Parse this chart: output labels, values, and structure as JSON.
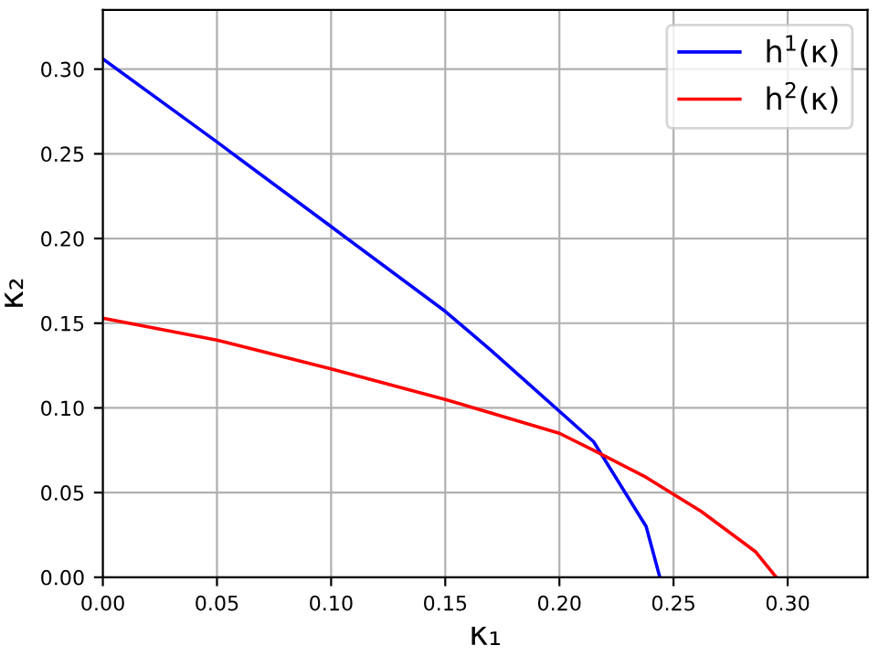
{
  "chart_data": {
    "type": "line",
    "xlabel": "κ₁",
    "ylabel": "κ₂",
    "xlim": [
      0,
      0.335
    ],
    "ylim": [
      0,
      0.335
    ],
    "xticks": [
      {
        "value": 0,
        "label": "0.00"
      },
      0.05,
      {
        "value": 0.1,
        "label": "0.10"
      },
      0.15,
      {
        "value": 0.2,
        "label": "0.20"
      },
      0.25,
      {
        "value": 0.3,
        "label": "0.30"
      }
    ],
    "yticks": [
      {
        "value": 0,
        "label": "0.00"
      },
      0.05,
      {
        "value": 0.1,
        "label": "0.10"
      },
      0.15,
      {
        "value": 0.2,
        "label": "0.20"
      },
      0.25,
      {
        "value": 0.3,
        "label": "0.30"
      }
    ],
    "grid": true,
    "legend": "top right",
    "marker": "none",
    "line_style": "solid",
    "series": [
      {
        "name": "h$^{1}$(κ)",
        "color": "#0000ff",
        "x": [
          0,
          0.05,
          0.1,
          0.15,
          0.17,
          0.19,
          0.215,
          0.238,
          0.244
        ],
        "values": [
          0.306,
          0.257,
          0.207,
          0.157,
          0.134,
          0.11,
          0.08,
          0.03,
          0
        ]
      },
      {
        "name": "h$^{2}$(κ)",
        "color": "#ff0000",
        "x": [
          0,
          0.05,
          0.1,
          0.15,
          0.17,
          0.2,
          0.215,
          0.238,
          0.262,
          0.286,
          0.295
        ],
        "values": [
          0.153,
          0.14,
          0.123,
          0.105,
          0.097,
          0.085,
          0.075,
          0.059,
          0.039,
          0.015,
          0
        ]
      }
    ]
  }
}
